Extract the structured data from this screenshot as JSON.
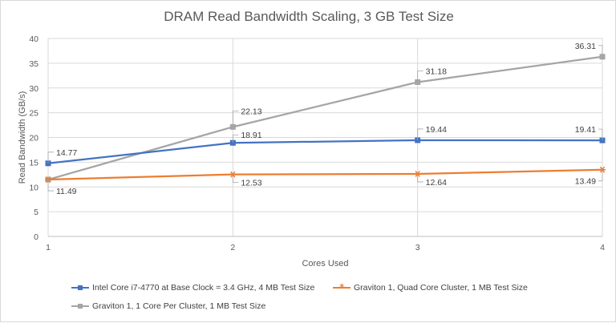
{
  "chart_data": {
    "type": "line",
    "title": "DRAM Read Bandwidth Scaling, 3 GB Test Size",
    "xlabel": "Cores Used",
    "ylabel": "Read Bandwidth (GB/s)",
    "x": [
      1,
      2,
      3,
      4
    ],
    "x_tick_labels": [
      "1",
      "2",
      "3",
      "4"
    ],
    "ylim": [
      0,
      40
    ],
    "y_ticks": [
      0,
      5,
      10,
      15,
      20,
      25,
      30,
      35,
      40
    ],
    "y_tick_labels": [
      "0",
      "5",
      "10",
      "15",
      "20",
      "25",
      "30",
      "35",
      "40"
    ],
    "grid": "horizontal and vertical",
    "legend_position": "bottom",
    "series": [
      {
        "name": "Intel Core i7-4770 at Base Clock = 3.4 GHz, 4 MB Test Size",
        "values": [
          14.77,
          18.91,
          19.44,
          19.41
        ],
        "labels": [
          "14.77",
          "18.91",
          "19.44",
          "19.41"
        ],
        "color": "#4472c4",
        "marker": "square"
      },
      {
        "name": "Graviton 1, Quad Core Cluster, 1 MB Test Size",
        "values": [
          11.49,
          12.53,
          12.64,
          13.49
        ],
        "labels": [
          "11.49",
          "12.53",
          "12.64",
          "13.49"
        ],
        "color": "#ed7d31",
        "marker": "star"
      },
      {
        "name": "Graviton 1, 1 Core Per Cluster, 1 MB Test Size",
        "values": [
          11.49,
          22.13,
          31.18,
          36.31
        ],
        "labels": [
          "",
          "22.13",
          "31.18",
          "36.31"
        ],
        "color": "#a5a5a5",
        "marker": "square"
      }
    ]
  }
}
